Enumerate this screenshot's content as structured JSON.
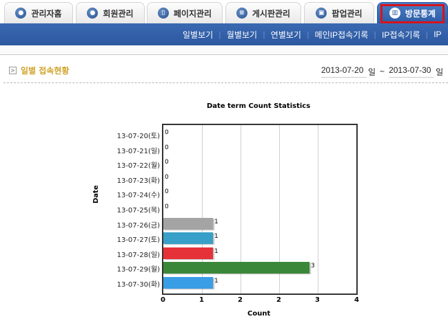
{
  "tabs": [
    {
      "label": "관리자홈",
      "icon": "user-icon",
      "active": false
    },
    {
      "label": "회원관리",
      "icon": "user-icon",
      "active": false
    },
    {
      "label": "페이지관리",
      "icon": "page-icon",
      "active": false
    },
    {
      "label": "게시판관리",
      "icon": "list-icon",
      "active": false
    },
    {
      "label": "팝업관리",
      "icon": "popup-icon",
      "active": false
    },
    {
      "label": "방문통계",
      "icon": "chart-icon",
      "active": true
    }
  ],
  "subnav": {
    "items": [
      "일별보기",
      "월별보기",
      "연별보기",
      "메인IP접속기록",
      "IP접속기록",
      "IP"
    ]
  },
  "section": {
    "title": "일별 접속현황",
    "start_date": "2013-07-20",
    "end_date": "2013-07-30",
    "unit": "일",
    "separator": "~"
  },
  "colors": {
    "accent_blue": "#2d5ca6",
    "highlight_red": "#d8131b",
    "section_title": "#d0a32a"
  },
  "chart_data": {
    "type": "bar",
    "orientation": "horizontal",
    "title": "Date term Count Statistics",
    "xlabel": "Count",
    "ylabel": "Date",
    "categories": [
      "13-07-20(토)",
      "13-07-21(일)",
      "13-07-22(월)",
      "13-07-23(화)",
      "13-07-24(수)",
      "13-07-25(목)",
      "13-07-26(금)",
      "13-07-27(토)",
      "13-07-28(일)",
      "13-07-29(월)",
      "13-07-30(화)"
    ],
    "values": [
      0,
      0,
      0,
      0,
      0,
      0,
      1,
      1,
      1,
      3,
      1
    ],
    "bar_colors": [
      "#999999",
      "#999999",
      "#999999",
      "#999999",
      "#999999",
      "#999999",
      "#a4a4a4",
      "#38a0c8",
      "#e53238",
      "#3a873a",
      "#3a9ee6"
    ],
    "x_ticks": [
      "0",
      "1",
      "2",
      "2",
      "3",
      "4"
    ],
    "xlim": [
      0,
      4
    ],
    "grid": true
  }
}
